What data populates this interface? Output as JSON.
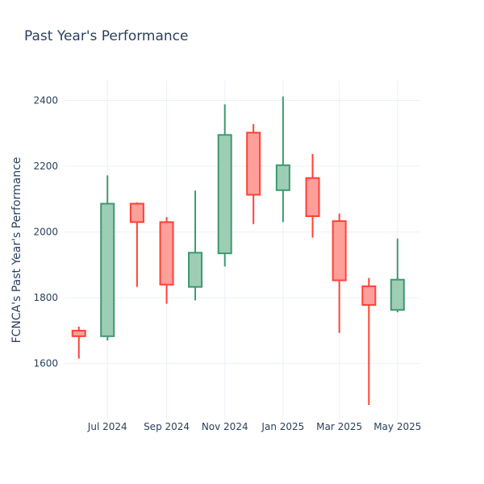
{
  "chart_data": {
    "type": "candlestick",
    "title": "Past Year's Performance",
    "xlabel": "",
    "ylabel": "FCNCA's Past Year's Performance",
    "ylim": [
      1430,
      2460
    ],
    "yticks": [
      1600,
      1800,
      2000,
      2200,
      2400
    ],
    "xlim": [
      "2024-05-17",
      "2025-05-24"
    ],
    "xticks": [
      {
        "date": "2024-07-01",
        "label": "Jul 2024"
      },
      {
        "date": "2024-09-01",
        "label": "Sep 2024"
      },
      {
        "date": "2024-11-01",
        "label": "Nov 2024"
      },
      {
        "date": "2025-01-01",
        "label": "Jan 2025"
      },
      {
        "date": "2025-03-01",
        "label": "Mar 2025"
      },
      {
        "date": "2025-05-01",
        "label": "May 2025"
      }
    ],
    "grid": true,
    "colors": {
      "increasing": "#3d9970",
      "increasing_fill": "#9ecdb5",
      "decreasing": "#ff4136",
      "decreasing_fill": "#ff9f9a"
    },
    "candles": [
      {
        "date": "2024-06-01",
        "open": 1700,
        "high": 1712,
        "low": 1615,
        "close": 1683
      },
      {
        "date": "2024-07-01",
        "open": 1683,
        "high": 2172,
        "low": 1670,
        "close": 2086
      },
      {
        "date": "2024-08-01",
        "open": 2086,
        "high": 2090,
        "low": 1833,
        "close": 2030
      },
      {
        "date": "2024-09-01",
        "open": 2030,
        "high": 2045,
        "low": 1782,
        "close": 1840
      },
      {
        "date": "2024-10-01",
        "open": 1833,
        "high": 2126,
        "low": 1792,
        "close": 1937
      },
      {
        "date": "2024-11-01",
        "open": 1935,
        "high": 2388,
        "low": 1895,
        "close": 2295
      },
      {
        "date": "2024-12-01",
        "open": 2302,
        "high": 2328,
        "low": 2024,
        "close": 2113
      },
      {
        "date": "2025-01-01",
        "open": 2127,
        "high": 2412,
        "low": 2030,
        "close": 2203
      },
      {
        "date": "2025-02-01",
        "open": 2164,
        "high": 2237,
        "low": 1983,
        "close": 2048
      },
      {
        "date": "2025-03-01",
        "open": 2033,
        "high": 2056,
        "low": 1693,
        "close": 1853
      },
      {
        "date": "2025-04-01",
        "open": 1835,
        "high": 1860,
        "low": 1474,
        "close": 1778
      },
      {
        "date": "2025-05-01",
        "open": 1763,
        "high": 1980,
        "low": 1756,
        "close": 1855
      }
    ]
  }
}
